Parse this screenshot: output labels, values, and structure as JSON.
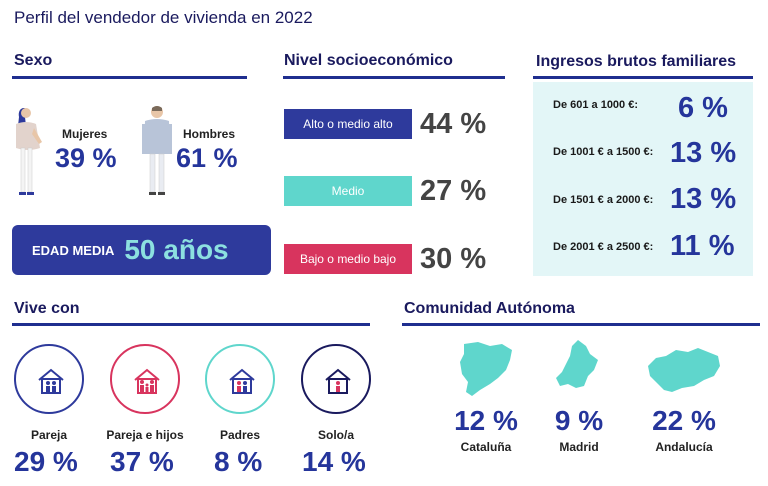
{
  "title": "Perfil del vendedor de vivienda en 2022",
  "sexo": {
    "heading": "Sexo",
    "mujeres": {
      "label": "Mujeres",
      "value": "39 %"
    },
    "hombres": {
      "label": "Hombres",
      "value": "61 %"
    },
    "edad_label": "EDAD MEDIA",
    "edad_value": "50 años"
  },
  "nivel": {
    "heading": "Nivel socioeconómico",
    "items": [
      {
        "label": "Alto o medio alto",
        "value": "44 %",
        "color": "#2e3a9c"
      },
      {
        "label": "Medio",
        "value": "27 %",
        "color": "#5fd6cc"
      },
      {
        "label": "Bajo o medio bajo",
        "value": "30 %",
        "color": "#d8345e"
      }
    ]
  },
  "ingresos": {
    "heading": "Ingresos brutos familiares",
    "rows": [
      {
        "label": "De 601 a 1000 €:",
        "value": "6 %"
      },
      {
        "label": "De 1001 € a 1500 €:",
        "value": "13 %"
      },
      {
        "label": "De 1501 € a 2000 €:",
        "value": "13 %"
      },
      {
        "label": "De 2001 € a 2500 €:",
        "value": "11 %"
      }
    ]
  },
  "vive": {
    "heading": "Vive con",
    "items": [
      {
        "label": "Pareja",
        "value": "29 %",
        "icon": "couple-house-icon",
        "color": "#2e3a9c"
      },
      {
        "label": "Pareja e hijos",
        "value": "37 %",
        "icon": "family-house-icon",
        "color": "#d8345e"
      },
      {
        "label": "Padres",
        "value": "8 %",
        "icon": "parents-house-icon",
        "color": "#5fd6cc"
      },
      {
        "label": "Solo/a",
        "value": "14 %",
        "icon": "single-house-icon",
        "color": "#1a1a5e"
      }
    ]
  },
  "comunidad": {
    "heading": "Comunidad Autónoma",
    "items": [
      {
        "label": "Cataluña",
        "value": "12 %",
        "icon": "cataluna-map-icon"
      },
      {
        "label": "Madrid",
        "value": "9 %",
        "icon": "madrid-map-icon"
      },
      {
        "label": "Andalucía",
        "value": "22 %",
        "icon": "andalucia-map-icon"
      }
    ],
    "map_color": "#5fd6cc"
  }
}
